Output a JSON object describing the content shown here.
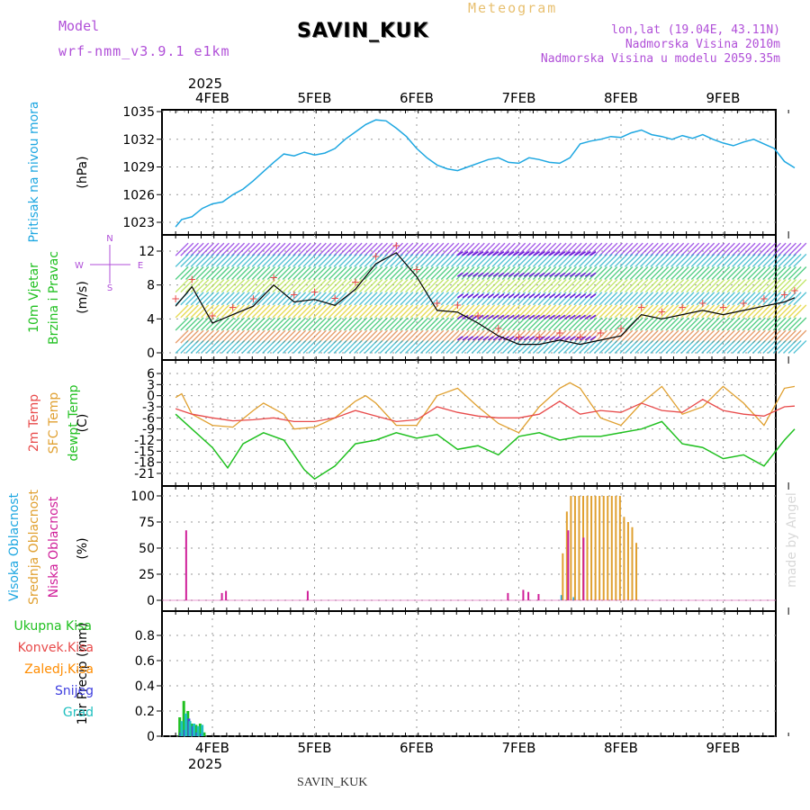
{
  "header": {
    "model_label": "Model",
    "model_name": "wrf-nmm_v3.9.1 e1km",
    "station": "SAVIN_KUK",
    "title": "Meteogram",
    "lonlat": "lon,lat (19.04E, 43.11N)",
    "elevation": "Nadmorska Visina 2010m",
    "model_elevation": "Nadmorska Visina u modelu 2059.35m"
  },
  "footer": {
    "station": "SAVIN_KUK",
    "credit": "made by Angel"
  },
  "time_axis": {
    "year": "2025",
    "days": [
      "4FEB",
      "5FEB",
      "6FEB",
      "7FEB",
      "8FEB",
      "9FEB"
    ]
  },
  "colors": {
    "pressure": "#1ea7e1",
    "temp2m": "#e84a4a",
    "sfc": "#e0a030",
    "dew": "#20c020",
    "wind_line": "#000000",
    "gust": "#e84a4a",
    "cloud_high": "#1ea7e1",
    "cloud_mid": "#e0a030",
    "cloud_low": "#d0209a",
    "precip_total": "#20c020",
    "precip_conv": "#e84a4a",
    "precip_frz": "#ff8c00",
    "precip_snow": "#4040e0",
    "precip_graupel": "#20c0c0"
  },
  "chart_data": [
    {
      "type": "line",
      "title": "Pritisak na nivou mora",
      "ylabel": "(hPa)",
      "ylim": [
        1022,
        1035
      ],
      "yticks": [
        1023,
        1026,
        1029,
        1032,
        1035
      ],
      "x_unit": "days since 3FEB 00Z",
      "series": [
        {
          "name": "Pritisak na nivou mora",
          "x": [
            0.64,
            0.7,
            0.8,
            0.9,
            1.0,
            1.1,
            1.2,
            1.3,
            1.4,
            1.5,
            1.6,
            1.7,
            1.8,
            1.9,
            2.0,
            2.1,
            2.2,
            2.3,
            2.4,
            2.5,
            2.6,
            2.7,
            2.8,
            2.9,
            3.0,
            3.1,
            3.2,
            3.3,
            3.4,
            3.5,
            3.6,
            3.7,
            3.8,
            3.9,
            4.0,
            4.1,
            4.2,
            4.3,
            4.4,
            4.5,
            4.6,
            4.7,
            4.8,
            4.9,
            5.0,
            5.1,
            5.2,
            5.3,
            5.4,
            5.5,
            5.6,
            5.7,
            5.8,
            5.9,
            6.0,
            6.1,
            6.2,
            6.3,
            6.4,
            6.5,
            6.6,
            6.7
          ],
          "y": [
            1022.5,
            1023.3,
            1023.6,
            1024.5,
            1025.0,
            1025.2,
            1026.0,
            1026.6,
            1027.5,
            1028.5,
            1029.5,
            1030.4,
            1030.2,
            1030.6,
            1030.3,
            1030.5,
            1031.0,
            1032.0,
            1032.8,
            1033.6,
            1034.1,
            1034.0,
            1033.2,
            1032.3,
            1031.0,
            1030.0,
            1029.2,
            1028.8,
            1028.6,
            1029.0,
            1029.4,
            1029.8,
            1030.0,
            1029.5,
            1029.4,
            1030.0,
            1029.8,
            1029.5,
            1029.4,
            1030.0,
            1031.5,
            1031.8,
            1032.0,
            1032.3,
            1032.2,
            1032.7,
            1033.0,
            1032.5,
            1032.3,
            1032.0,
            1032.4,
            1032.1,
            1032.5,
            1032.0,
            1031.6,
            1031.3,
            1031.7,
            1032.0,
            1031.5,
            1031.0,
            1029.6,
            1028.9
          ]
        }
      ]
    },
    {
      "type": "line",
      "title": "10m Vjetar Brzina i Pravac",
      "ylabel": "(m/s)",
      "ylim": [
        -1,
        14
      ],
      "yticks": [
        0,
        4,
        8,
        12
      ],
      "compass": {
        "n": "N",
        "s": "S",
        "w": "W",
        "e": "E"
      },
      "x_unit": "days since 3FEB 00Z",
      "series": [
        {
          "name": "10m Vjetar Brzina i Pravac",
          "x": [
            0.64,
            0.8,
            1.0,
            1.2,
            1.4,
            1.6,
            1.8,
            2.0,
            2.2,
            2.4,
            2.6,
            2.8,
            3.0,
            3.2,
            3.4,
            3.6,
            3.8,
            4.0,
            4.2,
            4.4,
            4.6,
            4.8,
            5.0,
            5.2,
            5.4,
            5.6,
            5.8,
            6.0,
            6.2,
            6.4,
            6.6,
            6.7
          ],
          "y": [
            5.5,
            7.8,
            3.5,
            4.5,
            5.5,
            8.0,
            6.0,
            6.3,
            5.6,
            7.5,
            10.5,
            11.8,
            9.0,
            5.0,
            4.8,
            3.5,
            2.0,
            1.0,
            1.0,
            1.5,
            1.0,
            1.5,
            2.0,
            4.5,
            4.0,
            4.5,
            5.0,
            4.5,
            5.0,
            5.5,
            6.0,
            6.5
          ]
        }
      ]
    },
    {
      "type": "line",
      "ylabel": "(C)",
      "ylim": [
        -24,
        6
      ],
      "yticks": [
        -21,
        -18,
        -15,
        -12,
        -9,
        -6,
        -3,
        0,
        3,
        6
      ],
      "x_unit": "days since 3FEB 00Z",
      "series": [
        {
          "name": "2m Temp",
          "x": [
            0.64,
            0.8,
            1.0,
            1.2,
            1.4,
            1.6,
            1.8,
            2.0,
            2.2,
            2.4,
            2.6,
            2.8,
            3.0,
            3.2,
            3.4,
            3.6,
            3.8,
            4.0,
            4.2,
            4.4,
            4.6,
            4.8,
            5.0,
            5.2,
            5.4,
            5.6,
            5.8,
            6.0,
            6.2,
            6.4,
            6.6,
            6.7
          ],
          "y": [
            -3.5,
            -5.0,
            -6.0,
            -6.8,
            -6.5,
            -6.0,
            -7.0,
            -7.0,
            -6.0,
            -4.0,
            -5.5,
            -7.0,
            -6.5,
            -3.0,
            -4.5,
            -5.5,
            -6.0,
            -6.0,
            -5.0,
            -1.5,
            -5.0,
            -4.0,
            -4.5,
            -2.0,
            -4.0,
            -4.5,
            -1.0,
            -4.0,
            -5.0,
            -5.5,
            -3.0,
            -2.8
          ]
        },
        {
          "name": "SFC Temp",
          "x": [
            0.64,
            0.7,
            0.8,
            1.0,
            1.2,
            1.4,
            1.5,
            1.7,
            1.8,
            2.0,
            2.2,
            2.4,
            2.5,
            2.6,
            2.8,
            3.0,
            3.2,
            3.4,
            3.6,
            3.8,
            4.0,
            4.2,
            4.4,
            4.5,
            4.6,
            4.8,
            5.0,
            5.2,
            5.4,
            5.6,
            5.8,
            6.0,
            6.2,
            6.4,
            6.6,
            6.7
          ],
          "y": [
            -0.5,
            0.5,
            -5.0,
            -8.0,
            -8.5,
            -4.0,
            -2.0,
            -5.0,
            -9.0,
            -8.5,
            -6.0,
            -1.5,
            0.0,
            -2.0,
            -8.0,
            -8.0,
            0.0,
            2.0,
            -3.0,
            -7.5,
            -10.0,
            -3.0,
            2.0,
            3.5,
            2.0,
            -6.0,
            -8.0,
            -2.0,
            2.5,
            -5.0,
            -3.0,
            2.5,
            -2.0,
            -8.0,
            2.0,
            2.5
          ]
        },
        {
          "name": "dewpt Temp",
          "x": [
            0.64,
            0.8,
            1.0,
            1.15,
            1.3,
            1.5,
            1.7,
            1.9,
            2.0,
            2.2,
            2.4,
            2.6,
            2.8,
            3.0,
            3.2,
            3.4,
            3.6,
            3.8,
            4.0,
            4.2,
            4.4,
            4.6,
            4.8,
            5.0,
            5.2,
            5.4,
            5.6,
            5.8,
            6.0,
            6.2,
            6.4,
            6.6,
            6.7
          ],
          "y": [
            -5.0,
            -9.0,
            -14.0,
            -19.5,
            -13.0,
            -10.0,
            -12.0,
            -20.0,
            -22.5,
            -19.0,
            -13.0,
            -12.0,
            -10.0,
            -11.5,
            -10.5,
            -14.5,
            -13.5,
            -16.0,
            -11.0,
            -10.0,
            -12.0,
            -11.0,
            -11.0,
            -10.0,
            -9.0,
            -7.0,
            -13.0,
            -14.0,
            -17.0,
            -16.0,
            -19.0,
            -12.0,
            -9.0
          ]
        }
      ]
    },
    {
      "type": "bar",
      "ylabel": "(%)",
      "ylim": [
        0,
        110
      ],
      "yticks": [
        0,
        25,
        50,
        75,
        100
      ],
      "x_unit": "days since 3FEB 00Z",
      "series": [
        {
          "name": "Visoka Oblacnost",
          "x": [
            4.43,
            4.55
          ],
          "y": [
            5,
            3
          ]
        },
        {
          "name": "Srednja Oblacnost",
          "x": [
            4.43,
            4.47,
            4.51,
            4.55,
            4.59,
            4.63,
            4.67,
            4.71,
            4.75,
            4.79,
            4.83,
            4.87,
            4.91,
            4.95,
            4.99,
            5.03,
            5.07,
            5.11,
            5.15
          ],
          "y": [
            45,
            85,
            100,
            100,
            100,
            100,
            100,
            100,
            100,
            100,
            100,
            100,
            100,
            100,
            100,
            80,
            75,
            70,
            55
          ]
        },
        {
          "name": "Niska Oblacnost",
          "x": [
            0.73,
            1.08,
            1.12,
            1.92,
            3.88,
            4.03,
            4.08,
            4.18,
            4.47,
            4.62
          ],
          "y": [
            67,
            7,
            9,
            9,
            7,
            10,
            8,
            6,
            67,
            60
          ]
        }
      ]
    },
    {
      "type": "bar",
      "ylabel": "1hr Precip (mm)",
      "ylim": [
        0,
        1
      ],
      "yticks": [
        0,
        0.2,
        0.4,
        0.6,
        0.8
      ],
      "x_unit": "days since 3FEB 00Z",
      "series": [
        {
          "name": "Ukupna Kisa",
          "x": [
            0.68,
            0.72,
            0.76,
            0.8,
            0.84,
            0.88,
            0.92
          ],
          "y": [
            0.15,
            0.28,
            0.2,
            0.1,
            0.09,
            0.1,
            0.03
          ]
        },
        {
          "name": "Konvek.Kisa",
          "x": [],
          "y": []
        },
        {
          "name": "Zaledj.Kisa",
          "x": [],
          "y": []
        },
        {
          "name": "Snijeg",
          "x": [
            0.69,
            0.73,
            0.77,
            0.81,
            0.85,
            0.89
          ],
          "y": [
            0.03,
            0.05,
            0.14,
            0.08,
            0.03,
            0.02
          ]
        },
        {
          "name": "Grad",
          "x": [
            0.7,
            0.74,
            0.78,
            0.82,
            0.86,
            0.9
          ],
          "y": [
            0.12,
            0.18,
            0.12,
            0.1,
            0.08,
            0.09
          ]
        }
      ]
    }
  ]
}
